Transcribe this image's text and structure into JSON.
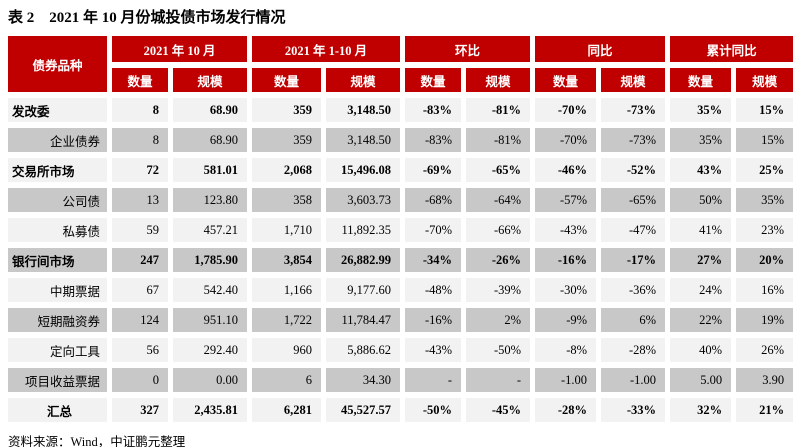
{
  "title": "表 2　2021 年 10 月份城投债市场发行情况",
  "source_note": "资料来源：Wind，中证鹏元整理",
  "colors": {
    "header_bg": "#C00000",
    "header_text": "#FFFFFF",
    "row_light": "#F2F2F2",
    "row_dark": "#C8C8C8"
  },
  "table": {
    "corner_header": "债券品种",
    "groups": [
      {
        "label": "2021 年 10 月"
      },
      {
        "label": "2021 年 1-10 月"
      },
      {
        "label": "环比"
      },
      {
        "label": "同比"
      },
      {
        "label": "累计同比"
      }
    ],
    "metric_headers": [
      "数量",
      "规模",
      "数量",
      "规模",
      "数量",
      "规模",
      "数量",
      "规模",
      "数量",
      "规模"
    ],
    "rows": [
      {
        "label": "发改委",
        "style": "category",
        "cells": [
          "8",
          "68.90",
          "359",
          "3,148.50",
          "-83%",
          "-81%",
          "-70%",
          "-73%",
          "35%",
          "15%"
        ]
      },
      {
        "label": "企业债券",
        "style": "sub",
        "cells": [
          "8",
          "68.90",
          "359",
          "3,148.50",
          "-83%",
          "-81%",
          "-70%",
          "-73%",
          "35%",
          "15%"
        ]
      },
      {
        "label": "交易所市场",
        "style": "category",
        "cells": [
          "72",
          "581.01",
          "2,068",
          "15,496.08",
          "-69%",
          "-65%",
          "-46%",
          "-52%",
          "43%",
          "25%"
        ]
      },
      {
        "label": "公司债",
        "style": "sub",
        "cells": [
          "13",
          "123.80",
          "358",
          "3,603.73",
          "-68%",
          "-64%",
          "-57%",
          "-65%",
          "50%",
          "35%"
        ]
      },
      {
        "label": "私募债",
        "style": "sub",
        "cells": [
          "59",
          "457.21",
          "1,710",
          "11,892.35",
          "-70%",
          "-66%",
          "-43%",
          "-47%",
          "41%",
          "23%"
        ]
      },
      {
        "label": "银行间市场",
        "style": "category",
        "cells": [
          "247",
          "1,785.90",
          "3,854",
          "26,882.99",
          "-34%",
          "-26%",
          "-16%",
          "-17%",
          "27%",
          "20%"
        ]
      },
      {
        "label": "中期票据",
        "style": "sub",
        "cells": [
          "67",
          "542.40",
          "1,166",
          "9,177.60",
          "-48%",
          "-39%",
          "-30%",
          "-36%",
          "24%",
          "16%"
        ]
      },
      {
        "label": "短期融资券",
        "style": "sub",
        "cells": [
          "124",
          "951.10",
          "1,722",
          "11,784.47",
          "-16%",
          "2%",
          "-9%",
          "6%",
          "22%",
          "19%"
        ]
      },
      {
        "label": "定向工具",
        "style": "sub",
        "cells": [
          "56",
          "292.40",
          "960",
          "5,886.62",
          "-43%",
          "-50%",
          "-8%",
          "-28%",
          "40%",
          "26%"
        ]
      },
      {
        "label": "项目收益票据",
        "style": "sub",
        "cells": [
          "0",
          "0.00",
          "6",
          "34.30",
          "-",
          "-",
          "-1.00",
          "-1.00",
          "5.00",
          "3.90"
        ]
      },
      {
        "label": "汇总",
        "style": "total",
        "cells": [
          "327",
          "2,435.81",
          "6,281",
          "45,527.57",
          "-50%",
          "-45%",
          "-28%",
          "-33%",
          "32%",
          "21%"
        ]
      }
    ]
  }
}
